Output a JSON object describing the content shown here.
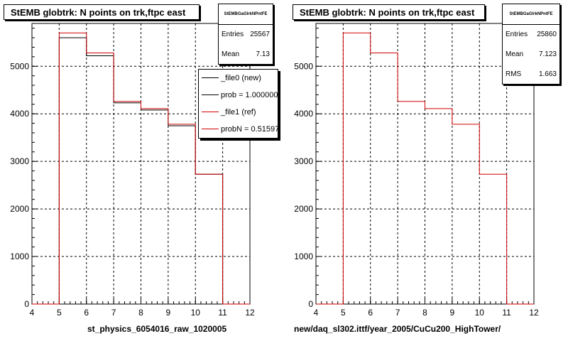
{
  "colors": {
    "new": "#000000",
    "ref": "#d00000",
    "grid": "#000000"
  },
  "chart_data": [
    {
      "type": "histogram",
      "title": "StEMB globtrk: N points on trk,ftpc east",
      "xlabel": "st_physics_6054016_raw_1020005",
      "ylabel": "",
      "xlim": [
        4,
        12
      ],
      "ylim": [
        0,
        5900
      ],
      "x_ticks": [
        4,
        5,
        6,
        7,
        8,
        9,
        10,
        11,
        12
      ],
      "y_ticks": [
        0,
        1000,
        2000,
        3000,
        4000,
        5000
      ],
      "grid": true,
      "bin_edges": [
        4,
        5,
        6,
        7,
        8,
        9,
        10,
        11,
        12
      ],
      "series": [
        {
          "name": "_file0 (new)",
          "values": [
            0,
            5600,
            5220,
            4230,
            4080,
            3750,
            2730,
            0
          ]
        },
        {
          "name": "_file1 (ref)",
          "values": [
            0,
            5700,
            5280,
            4260,
            4110,
            3780,
            2730,
            0
          ]
        }
      ],
      "stats": {
        "name": "StEMBGaGlrkNPntFE",
        "rows": [
          {
            "label": "Entries",
            "value": "25567"
          },
          {
            "label": "Mean",
            "value": "7.13"
          }
        ]
      },
      "legend": {
        "placement": "top-right",
        "entries": [
          {
            "text": "_file0 (new)",
            "color": "#000000"
          },
          {
            "text": "prob = 1.000000",
            "color": "#000000"
          },
          {
            "text": "_file1 (ref)",
            "color": "#d00000"
          },
          {
            "text": "probN = 0.515970",
            "color": "#d00000"
          }
        ]
      }
    },
    {
      "type": "histogram",
      "title": "StEMB globtrk: N points on trk,ftpc east",
      "xlabel": "new/daq_sl302.ittf/year_2005/CuCu200_HighTower/",
      "ylabel": "",
      "xlim": [
        4,
        12
      ],
      "ylim": [
        0,
        5900
      ],
      "x_ticks": [
        4,
        5,
        6,
        7,
        8,
        9,
        10,
        11,
        12
      ],
      "y_ticks": [
        0,
        1000,
        2000,
        3000,
        4000,
        5000
      ],
      "grid": true,
      "bin_edges": [
        4,
        5,
        6,
        7,
        8,
        9,
        10,
        11,
        12
      ],
      "series": [
        {
          "name": "",
          "values": [
            0,
            5700,
            5280,
            4260,
            4110,
            3780,
            2730,
            0
          ]
        }
      ],
      "stats": {
        "name": "StEMBGaGlrkNPntFE",
        "rows": [
          {
            "label": "Entries",
            "value": "25860"
          },
          {
            "label": "Mean",
            "value": "7.123"
          },
          {
            "label": "RMS",
            "value": "1.663"
          }
        ]
      }
    }
  ]
}
